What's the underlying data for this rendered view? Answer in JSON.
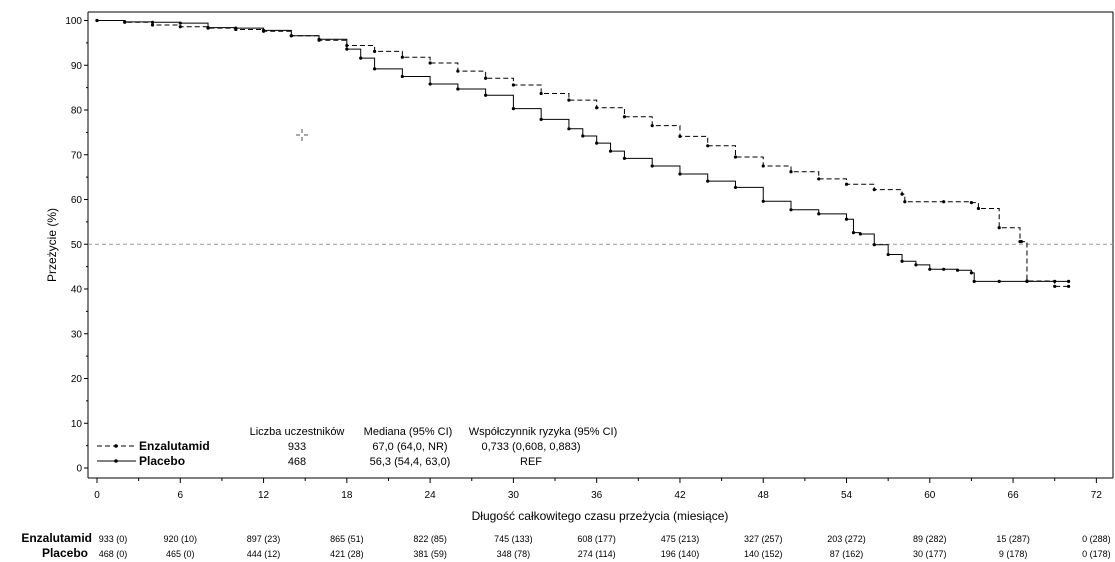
{
  "chart_data": {
    "type": "line",
    "xlabel": "Długość całkowitego czasu przeżycia (miesiące)",
    "ylabel": "Przeżycie (%)",
    "xlim": [
      0,
      74
    ],
    "ylim": [
      0,
      100
    ],
    "xticks": [
      "0",
      "6",
      "12",
      "18",
      "24",
      "30",
      "36",
      "42",
      "48",
      "54",
      "60",
      "66",
      "72"
    ],
    "yticks": [
      "0",
      "10",
      "20",
      "30",
      "40",
      "50",
      "60",
      "70",
      "80",
      "90",
      "100"
    ],
    "reference_line_y": 50,
    "series": [
      {
        "name": "Enzalutamid",
        "line_style": "dashed",
        "color": "#000000",
        "x": [
          0,
          2,
          4,
          6,
          8,
          10,
          12,
          14,
          16,
          18,
          20,
          22,
          24,
          26,
          28,
          30,
          32,
          34,
          36,
          38,
          40,
          42,
          44,
          46,
          48,
          50,
          52,
          54,
          56,
          58,
          58.2,
          61,
          63,
          63.5,
          65,
          66.5,
          66.6,
          67,
          69,
          70
        ],
        "y": [
          100,
          99.6,
          99,
          98.6,
          98.3,
          98,
          97.6,
          96.6,
          95.6,
          94.4,
          93.1,
          91.8,
          90.5,
          88.7,
          87.1,
          85.6,
          83.7,
          82.2,
          80.5,
          78.5,
          76.5,
          74.1,
          72,
          69.5,
          67.5,
          66.2,
          64.6,
          63.4,
          62.2,
          61.2,
          59.5,
          59.5,
          59.3,
          58,
          53.7,
          50.6,
          50.6,
          41.8,
          40.6,
          40.6
        ]
      },
      {
        "name": "Placebo",
        "line_style": "solid",
        "color": "#000000",
        "x": [
          0,
          2,
          4,
          6,
          8,
          10,
          12,
          14,
          16,
          18,
          19,
          20,
          22,
          24,
          26,
          28,
          30,
          32,
          34,
          35,
          36,
          37,
          38,
          40,
          42,
          44,
          46,
          48,
          50,
          52,
          54,
          54.5,
          55,
          56,
          57,
          58,
          59,
          60,
          61,
          62,
          63,
          63.2,
          65,
          67,
          69,
          70
        ],
        "y": [
          100,
          99.7,
          99.6,
          99.4,
          98.4,
          98.3,
          97.8,
          96.6,
          95.8,
          93.6,
          91.6,
          89.2,
          87.5,
          85.8,
          84.7,
          83.3,
          80.3,
          77.9,
          75.8,
          74.2,
          72.6,
          70.8,
          69.2,
          67.5,
          65.7,
          64.1,
          62.7,
          59.6,
          57.7,
          56.8,
          55.6,
          52.6,
          52.3,
          49.9,
          47.7,
          46.2,
          45.4,
          44.4,
          44.4,
          44.2,
          43.6,
          41.7,
          41.7,
          41.7,
          41.7,
          41.7
        ]
      }
    ]
  },
  "legend": {
    "header_n": "Liczba uczestników",
    "header_median": "Mediana (95% CI)",
    "header_hr": "Współczynnik ryzyka (95% CI)",
    "rows": [
      {
        "name": "Enzalutamid",
        "n": "933",
        "median": "67,0 (64,0, NR)",
        "hr": "0,733 (0,608, 0,883)"
      },
      {
        "name": "Placebo",
        "n": "468",
        "median": "56,3 (54,4, 63,0)",
        "hr": "REF"
      }
    ]
  },
  "risk_table": {
    "rows": [
      {
        "label": "Enzalutamid",
        "values": [
          "933 (0)",
          "920 (10)",
          "897 (23)",
          "865 (51)",
          "822 (85)",
          "745 (133)",
          "608 (177)",
          "475 (213)",
          "327 (257)",
          "203 (272)",
          "89 (282)",
          "15 (287)",
          "0 (288)"
        ]
      },
      {
        "label": "Placebo",
        "values": [
          "468 (0)",
          "465 (0)",
          "444 (12)",
          "421 (28)",
          "381 (59)",
          "348 (78)",
          "274 (114)",
          "196 (140)",
          "140 (152)",
          "87 (162)",
          "30 (177)",
          "9 (178)",
          "0 (178)"
        ]
      }
    ]
  }
}
